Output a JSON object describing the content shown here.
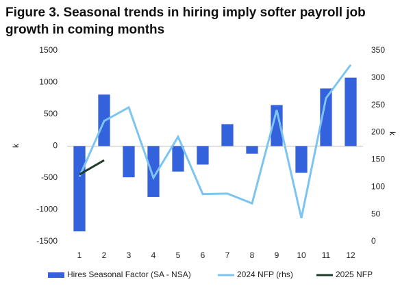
{
  "chart_data": {
    "type": "bar_line",
    "title_lines": [
      "Figure 3. Seasonal trends in hiring imply softer payroll job",
      "growth in coming months"
    ],
    "y_label": "k",
    "y2_label": "k",
    "categories": [
      "1",
      "2",
      "3",
      "4",
      "5",
      "6",
      "7",
      "8",
      "9",
      "10",
      "11",
      "12"
    ],
    "series": [
      {
        "name": "Hires Seasonal Factor (SA - NSA)",
        "kind": "bar",
        "color": "#3461dc",
        "axis": "y",
        "values": [
          -1340,
          810,
          -490,
          -800,
          -400,
          -290,
          345,
          -120,
          645,
          -420,
          905,
          1075
        ]
      },
      {
        "name": "2024 NFP (rhs)",
        "kind": "line",
        "color": "#7cc4f2",
        "axis": "y2",
        "values": [
          119,
          221,
          246,
          117,
          192,
          87,
          88,
          70,
          241,
          43,
          263,
          324
        ]
      },
      {
        "name": "2025 NFP",
        "kind": "line",
        "color": "#1d3b2a",
        "axis": "y2",
        "values": [
          123,
          149,
          null,
          null,
          null,
          null,
          null,
          null,
          null,
          null,
          null,
          null
        ]
      }
    ],
    "ylim": [
      -1500,
      1500
    ],
    "yticks": [
      -1500,
      -1000,
      -500,
      0,
      500,
      1000,
      1500
    ],
    "y2lim": [
      0,
      350
    ],
    "y2ticks": [
      0,
      50,
      100,
      150,
      200,
      250,
      300,
      350
    ],
    "grid": false
  }
}
